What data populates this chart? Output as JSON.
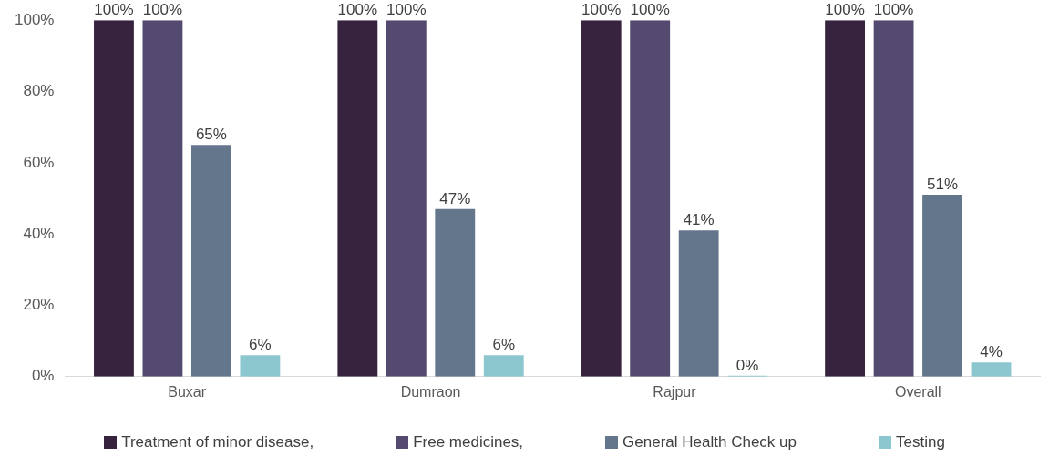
{
  "chart_data": {
    "type": "bar",
    "categories": [
      "Buxar",
      "Dumraon",
      "Rajpur",
      "Overall"
    ],
    "series": [
      {
        "name": "Treatment of minor disease,",
        "color": "#37233e",
        "values": [
          100,
          100,
          100,
          100
        ],
        "value_labels": [
          "100%",
          "100%",
          "100%",
          "100%"
        ]
      },
      {
        "name": "Free medicines,",
        "color": "#54496e",
        "values": [
          100,
          100,
          100,
          100
        ],
        "value_labels": [
          "100%",
          "100%",
          "100%",
          "100%"
        ]
      },
      {
        "name": "General Health Check up",
        "color": "#64768c",
        "values": [
          65,
          47,
          41,
          51
        ],
        "value_labels": [
          "65%",
          "47%",
          "41%",
          "51%"
        ]
      },
      {
        "name": "Testing",
        "color": "#8cc7d0",
        "values": [
          6,
          6,
          0,
          4
        ],
        "value_labels": [
          "6%",
          "6%",
          "0%",
          "4%"
        ]
      }
    ],
    "ylim": [
      0,
      100
    ],
    "yticks": [
      {
        "value": 0,
        "label": "0%"
      },
      {
        "value": 20,
        "label": "20%"
      },
      {
        "value": 40,
        "label": "40%"
      },
      {
        "value": 60,
        "label": "60%"
      },
      {
        "value": 80,
        "label": "80%"
      },
      {
        "value": 100,
        "label": "100%"
      }
    ],
    "grid": false,
    "legend": "bottom"
  }
}
